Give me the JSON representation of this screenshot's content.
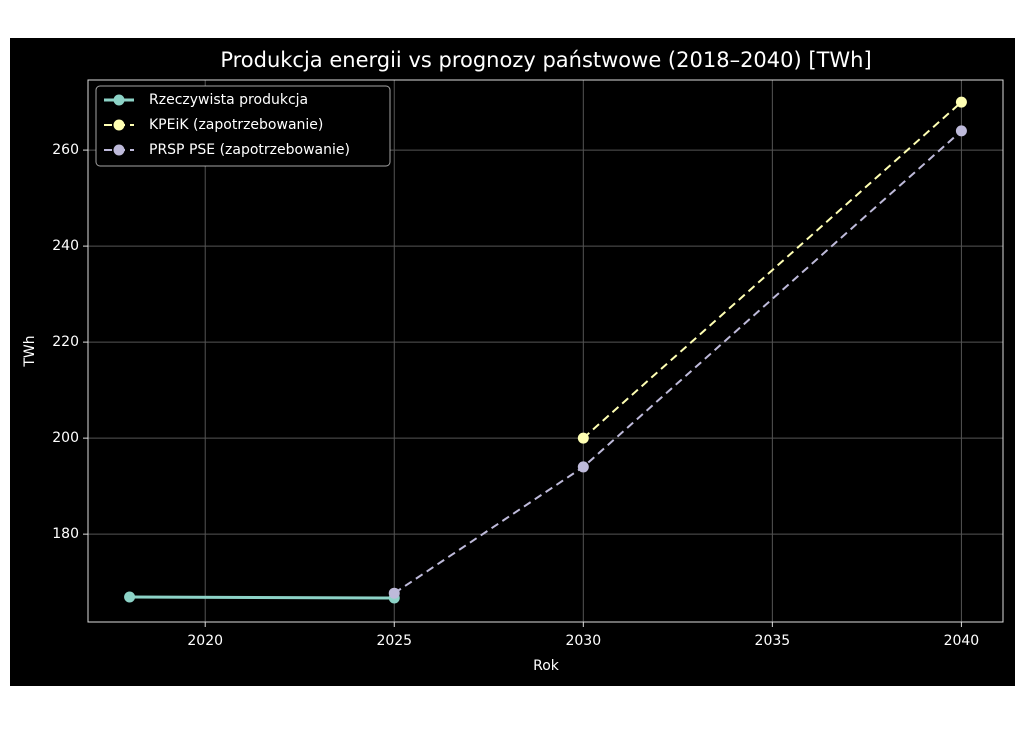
{
  "chart_data": {
    "type": "line",
    "title": "Produkcja energii vs prognozy państwowe (2018–2040) [TWh]",
    "x_label": "Rok",
    "y_label": "TWh",
    "x": [
      2018,
      2025,
      2030,
      2040
    ],
    "series": [
      {
        "name": "Rzeczywista produkcja",
        "color": "#8dd3c7",
        "linestyle": "solid",
        "linewidth": 3,
        "values": [
          166.9,
          166.7,
          null,
          null
        ]
      },
      {
        "name": "KPEiK (zapotrzebowanie)",
        "color": "#ffffb3",
        "linestyle": "dashed",
        "linewidth": 2,
        "values": [
          null,
          null,
          200,
          270
        ]
      },
      {
        "name": "PRSP PSE (zapotrzebowanie)",
        "color": "#bebada",
        "linestyle": "dashed",
        "linewidth": 2,
        "values": [
          null,
          167.7,
          194,
          264
        ]
      }
    ],
    "xlim": [
      2016.9,
      2041.1
    ],
    "xticks": [
      2020,
      2025,
      2030,
      2035,
      2040
    ],
    "ylim": [
      161.7,
      274.6
    ],
    "yticks": [
      180,
      200,
      220,
      240,
      260
    ],
    "grid": true,
    "legend": "upper-left"
  }
}
